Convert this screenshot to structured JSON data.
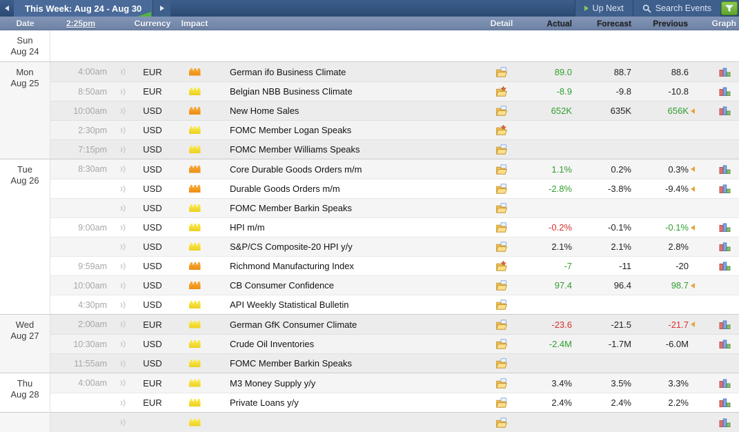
{
  "topbar": {
    "tab_label": "This Week: Aug 24 - Aug 30",
    "up_next_label": "Up Next",
    "search_label": "Search Events"
  },
  "columns": {
    "date": "Date",
    "time": "2:25pm",
    "currency": "Currency",
    "impact": "Impact",
    "detail": "Detail",
    "actual": "Actual",
    "forecast": "Forecast",
    "previous": "Previous",
    "graph": "Graph"
  },
  "colors": {
    "value_green": "#2f9e2f",
    "value_red": "#d6302c",
    "value_black": "#222222",
    "revision_orange": "#e8a33d",
    "impact_orange": "#f59a23",
    "impact_yellow": "#f7e344",
    "filter_green": "#79b93c",
    "topbar_blue": "#2c4a72",
    "header_blue": "#7d90b2"
  },
  "days": [
    {
      "day": "Sun",
      "date": "Aug 24",
      "shade": "white",
      "events": []
    },
    {
      "day": "Mon",
      "date": "Aug 25",
      "shade": "gray",
      "events": [
        {
          "time": "4:00am",
          "currency": "EUR",
          "impact": "orange",
          "event": "German ifo Business Climate",
          "detail": "paper",
          "actual": "89.0",
          "actual_color": "green",
          "forecast": "88.7",
          "previous": "88.6",
          "previous_color": "black",
          "revised": false,
          "graph": true
        },
        {
          "time": "8:50am",
          "currency": "EUR",
          "impact": "yellow",
          "event": "Belgian NBB Business Climate",
          "detail": "star",
          "actual": "-8.9",
          "actual_color": "green",
          "forecast": "-9.8",
          "previous": "-10.8",
          "previous_color": "black",
          "revised": false,
          "graph": true
        },
        {
          "time": "10:00am",
          "currency": "USD",
          "impact": "orange",
          "event": "New Home Sales",
          "detail": "paper",
          "actual": "652K",
          "actual_color": "green",
          "forecast": "635K",
          "previous": "656K",
          "previous_color": "green",
          "revised": true,
          "graph": true
        },
        {
          "time": "2:30pm",
          "currency": "USD",
          "impact": "yellow",
          "event": "FOMC Member Logan Speaks",
          "detail": "star",
          "actual": "",
          "forecast": "",
          "previous": "",
          "revised": false,
          "graph": false
        },
        {
          "time": "7:15pm",
          "currency": "USD",
          "impact": "yellow",
          "event": "FOMC Member Williams Speaks",
          "detail": "paper",
          "actual": "",
          "forecast": "",
          "previous": "",
          "revised": false,
          "graph": false
        }
      ]
    },
    {
      "day": "Tue",
      "date": "Aug 26",
      "shade": "white",
      "events": [
        {
          "time": "8:30am",
          "currency": "USD",
          "impact": "orange",
          "event": "Core Durable Goods Orders m/m",
          "detail": "paper",
          "actual": "1.1%",
          "actual_color": "green",
          "forecast": "0.2%",
          "previous": "0.3%",
          "previous_color": "black",
          "revised": true,
          "graph": true
        },
        {
          "time": "",
          "currency": "USD",
          "impact": "orange",
          "event": "Durable Goods Orders m/m",
          "detail": "paper",
          "actual": "-2.8%",
          "actual_color": "green",
          "forecast": "-3.8%",
          "previous": "-9.4%",
          "previous_color": "black",
          "revised": true,
          "graph": true
        },
        {
          "time": "",
          "currency": "USD",
          "impact": "yellow",
          "event": "FOMC Member Barkin Speaks",
          "detail": "paper",
          "actual": "",
          "forecast": "",
          "previous": "",
          "revised": false,
          "graph": false
        },
        {
          "time": "9:00am",
          "currency": "USD",
          "impact": "yellow",
          "event": "HPI m/m",
          "detail": "paper",
          "actual": "-0.2%",
          "actual_color": "red",
          "forecast": "-0.1%",
          "previous": "-0.1%",
          "previous_color": "green",
          "revised": true,
          "graph": true
        },
        {
          "time": "",
          "currency": "USD",
          "impact": "yellow",
          "event": "S&P/CS Composite-20 HPI y/y",
          "detail": "paper",
          "actual": "2.1%",
          "actual_color": "black",
          "forecast": "2.1%",
          "previous": "2.8%",
          "previous_color": "black",
          "revised": false,
          "graph": true
        },
        {
          "time": "9:59am",
          "currency": "USD",
          "impact": "orange",
          "event": "Richmond Manufacturing Index",
          "detail": "star",
          "actual": "-7",
          "actual_color": "green",
          "forecast": "-11",
          "previous": "-20",
          "previous_color": "black",
          "revised": false,
          "graph": true
        },
        {
          "time": "10:00am",
          "currency": "USD",
          "impact": "orange",
          "event": "CB Consumer Confidence",
          "detail": "paper",
          "actual": "97.4",
          "actual_color": "green",
          "forecast": "96.4",
          "previous": "98.7",
          "previous_color": "green",
          "revised": true,
          "graph": false
        },
        {
          "time": "4:30pm",
          "currency": "USD",
          "impact": "yellow",
          "event": "API Weekly Statistical Bulletin",
          "detail": "paper",
          "actual": "",
          "forecast": "",
          "previous": "",
          "revised": false,
          "graph": false
        }
      ]
    },
    {
      "day": "Wed",
      "date": "Aug 27",
      "shade": "gray",
      "events": [
        {
          "time": "2:00am",
          "currency": "EUR",
          "impact": "yellow",
          "event": "German GfK Consumer Climate",
          "detail": "paper",
          "actual": "-23.6",
          "actual_color": "red",
          "forecast": "-21.5",
          "previous": "-21.7",
          "previous_color": "red",
          "revised": true,
          "graph": true
        },
        {
          "time": "10:30am",
          "currency": "USD",
          "impact": "yellow",
          "event": "Crude Oil Inventories",
          "detail": "paper",
          "actual": "-2.4M",
          "actual_color": "green",
          "forecast": "-1.7M",
          "previous": "-6.0M",
          "previous_color": "black",
          "revised": false,
          "graph": true
        },
        {
          "time": "11:55am",
          "currency": "USD",
          "impact": "yellow",
          "event": "FOMC Member Barkin Speaks",
          "detail": "paper",
          "actual": "",
          "forecast": "",
          "previous": "",
          "revised": false,
          "graph": false
        }
      ]
    },
    {
      "day": "Thu",
      "date": "Aug 28",
      "shade": "white",
      "events": [
        {
          "time": "4:00am",
          "currency": "EUR",
          "impact": "yellow",
          "event": "M3 Money Supply y/y",
          "detail": "paper",
          "actual": "3.4%",
          "actual_color": "black",
          "forecast": "3.5%",
          "previous": "3.3%",
          "previous_color": "black",
          "revised": false,
          "graph": true
        },
        {
          "time": "",
          "currency": "EUR",
          "impact": "yellow",
          "event": "Private Loans y/y",
          "detail": "paper",
          "actual": "2.4%",
          "actual_color": "black",
          "forecast": "2.4%",
          "previous": "2.2%",
          "previous_color": "black",
          "revised": false,
          "graph": true
        }
      ]
    },
    {
      "day": "",
      "date": "",
      "shade": "gray",
      "events": [
        {
          "time": "",
          "currency": "",
          "impact": "yellow",
          "event": "",
          "detail": "paper",
          "actual": "",
          "forecast": "",
          "previous": "",
          "revised": false,
          "graph": true
        }
      ]
    }
  ]
}
